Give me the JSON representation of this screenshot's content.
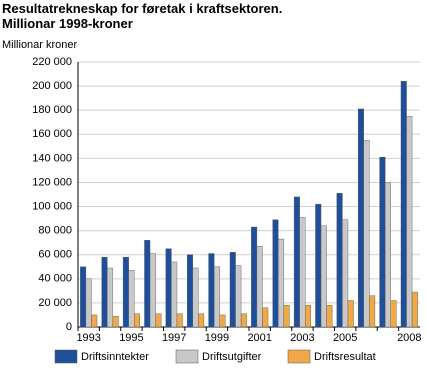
{
  "chart_data": {
    "type": "bar",
    "title": "Resultatrekneskap for føretak i kraftsektoren. Millionar 1998-kroner",
    "y_label": "Millionar kroner",
    "categories": [
      "1993",
      null,
      "1995",
      null,
      "1997",
      null,
      "1999",
      null,
      "2001",
      null,
      "2003",
      null,
      "2005",
      null,
      null,
      "2008"
    ],
    "series": [
      {
        "name": "Driftsinntekter",
        "color": "#1f4e9a",
        "values": [
          50000,
          58000,
          58000,
          72000,
          65000,
          60000,
          61000,
          62000,
          83000,
          89000,
          108000,
          102000,
          111000,
          181000,
          141000,
          204000
        ]
      },
      {
        "name": "Driftsutgifter",
        "color": "#c8c8c8",
        "values": [
          40000,
          49000,
          47000,
          61000,
          54000,
          49000,
          50000,
          51000,
          67000,
          73000,
          91000,
          84000,
          89000,
          155000,
          120000,
          175000
        ]
      },
      {
        "name": "Driftsresultat",
        "color": "#f0a848",
        "values": [
          10000,
          9000,
          11000,
          11000,
          11000,
          11000,
          10000,
          11000,
          16000,
          18000,
          18000,
          18000,
          22000,
          26000,
          22000,
          29000
        ]
      }
    ],
    "ylim": [
      0,
      220000
    ],
    "yticks": [
      0,
      {
        "value": 20000,
        "label": "20 000"
      },
      {
        "value": 40000,
        "label": "40 000"
      },
      {
        "value": 60000,
        "label": "60 000"
      },
      {
        "value": 80000,
        "label": "80 000"
      },
      {
        "value": 100000,
        "label": "100 000"
      },
      {
        "value": 120000,
        "label": "120 000"
      },
      {
        "value": 140000,
        "label": "140 000"
      },
      {
        "value": 160000,
        "label": "160 000"
      },
      {
        "value": 180000,
        "label": "180 000"
      },
      {
        "value": 200000,
        "label": "200 000"
      },
      {
        "value": 220000,
        "label": "220 000"
      }
    ],
    "grid": true
  }
}
